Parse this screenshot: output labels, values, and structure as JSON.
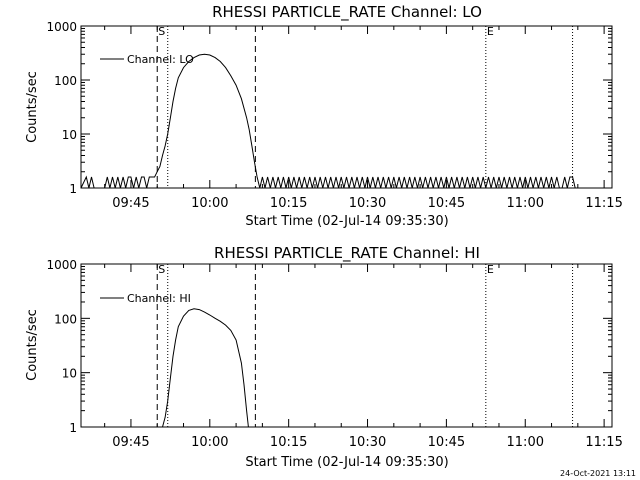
{
  "footer": {
    "stamp": "24-Oct-2021 13:11"
  },
  "chart_data": [
    {
      "type": "line",
      "title": "RHESSI PARTICLE_RATE Channel: LO",
      "xlabel": "Start Time (02-Jul-14 09:35:30)",
      "ylabel": "Counts/sec",
      "yscale": "log",
      "xlim": [
        "09:35:30",
        "11:16:30"
      ],
      "ylim": [
        1,
        1000
      ],
      "grid": false,
      "legend": "top-left",
      "x_ticks": [
        "09:45",
        "10:00",
        "10:15",
        "10:30",
        "10:45",
        "11:00",
        "11:15"
      ],
      "y_ticks": [
        "1",
        "10",
        "100",
        "1000"
      ],
      "markers": [
        {
          "label": "S",
          "time": "09:50:00",
          "style": "dashed"
        },
        {
          "label": "",
          "time": "09:52:00",
          "style": "dotted"
        },
        {
          "label": "",
          "time": "10:08:40",
          "style": "dashed"
        },
        {
          "label": "E",
          "time": "10:52:30",
          "style": "dotted"
        },
        {
          "label": "",
          "time": "11:09:00",
          "style": "dotted"
        }
      ],
      "series": [
        {
          "name": "Channel: LO",
          "points": [
            [
              "09:35:30",
              1
            ],
            [
              "09:36:30",
              1.6
            ],
            [
              "09:37:00",
              1
            ],
            [
              "09:37:30",
              1.6
            ],
            [
              "09:38:00",
              1
            ],
            [
              "09:40:00",
              1
            ],
            [
              "09:40:30",
              1.6
            ],
            [
              "09:41:00",
              1
            ],
            [
              "09:41:30",
              1.6
            ],
            [
              "09:42:00",
              1
            ],
            [
              "09:42:30",
              1.6
            ],
            [
              "09:43:00",
              1
            ],
            [
              "09:43:30",
              1.6
            ],
            [
              "09:44:00",
              1
            ],
            [
              "09:44:30",
              1.6
            ],
            [
              "09:45:00",
              1.6
            ],
            [
              "09:45:30",
              1
            ],
            [
              "09:46:00",
              1.6
            ],
            [
              "09:46:30",
              1
            ],
            [
              "09:47:00",
              1.6
            ],
            [
              "09:47:30",
              1.6
            ],
            [
              "09:48:00",
              1
            ],
            [
              "09:48:30",
              1.6
            ],
            [
              "09:49:00",
              1.6
            ],
            [
              "09:49:30",
              1.6
            ],
            [
              "09:50:00",
              2
            ],
            [
              "09:50:30",
              2.5
            ],
            [
              "09:51:00",
              4
            ],
            [
              "09:51:30",
              6
            ],
            [
              "09:52:00",
              10
            ],
            [
              "09:52:30",
              20
            ],
            [
              "09:53:00",
              40
            ],
            [
              "09:53:30",
              70
            ],
            [
              "09:54:00",
              110
            ],
            [
              "09:55:00",
              170
            ],
            [
              "09:56:00",
              220
            ],
            [
              "09:57:00",
              260
            ],
            [
              "09:58:00",
              290
            ],
            [
              "09:59:00",
              300
            ],
            [
              "10:00:00",
              290
            ],
            [
              "10:01:00",
              260
            ],
            [
              "10:02:00",
              220
            ],
            [
              "10:03:00",
              170
            ],
            [
              "10:04:00",
              120
            ],
            [
              "10:05:00",
              80
            ],
            [
              "10:06:00",
              45
            ],
            [
              "10:07:00",
              20
            ],
            [
              "10:07:30",
              12
            ],
            [
              "10:08:00",
              6
            ],
            [
              "10:08:30",
              3
            ],
            [
              "10:09:00",
              1.6
            ],
            [
              "10:09:30",
              1
            ],
            [
              "10:10:00",
              1.6
            ],
            [
              "10:10:30",
              1
            ],
            [
              "10:11:00",
              1.6
            ],
            [
              "10:11:30",
              1
            ],
            [
              "10:12:00",
              1.6
            ],
            [
              "10:12:30",
              1
            ],
            [
              "10:13:00",
              1.6
            ],
            [
              "10:13:30",
              1
            ],
            [
              "10:14:00",
              1.6
            ],
            [
              "10:14:30",
              1
            ],
            [
              "10:15:00",
              1.6
            ],
            [
              "10:15:30",
              1
            ],
            [
              "10:16:00",
              1.6
            ],
            [
              "10:16:30",
              1
            ],
            [
              "10:17:00",
              1.6
            ],
            [
              "10:17:30",
              1
            ],
            [
              "10:18:00",
              1.6
            ],
            [
              "10:18:30",
              1
            ],
            [
              "10:19:00",
              1.6
            ],
            [
              "10:19:30",
              1
            ],
            [
              "10:20:00",
              1.6
            ],
            [
              "10:20:30",
              1
            ],
            [
              "10:21:00",
              1.6
            ],
            [
              "10:21:30",
              1
            ],
            [
              "10:22:00",
              1.6
            ],
            [
              "10:22:30",
              1
            ],
            [
              "10:23:00",
              1.6
            ],
            [
              "10:23:30",
              1
            ],
            [
              "10:24:00",
              1.6
            ],
            [
              "10:24:30",
              1
            ],
            [
              "10:25:00",
              1.6
            ],
            [
              "10:25:30",
              1
            ],
            [
              "10:26:00",
              1.6
            ],
            [
              "10:26:30",
              1
            ],
            [
              "10:27:00",
              1.6
            ],
            [
              "10:27:30",
              1
            ],
            [
              "10:28:00",
              1.6
            ],
            [
              "10:28:30",
              1
            ],
            [
              "10:29:00",
              1.6
            ],
            [
              "10:29:30",
              1
            ],
            [
              "10:30:00",
              1.6
            ],
            [
              "10:30:30",
              1
            ],
            [
              "10:31:00",
              1.6
            ],
            [
              "10:31:30",
              1
            ],
            [
              "10:32:00",
              1.6
            ],
            [
              "10:32:30",
              1
            ],
            [
              "10:33:00",
              1.6
            ],
            [
              "10:33:30",
              1
            ],
            [
              "10:34:00",
              1.6
            ],
            [
              "10:34:30",
              1
            ],
            [
              "10:35:00",
              1.6
            ],
            [
              "10:35:30",
              1
            ],
            [
              "10:36:00",
              1.6
            ],
            [
              "10:36:30",
              1
            ],
            [
              "10:37:00",
              1.6
            ],
            [
              "10:37:30",
              1
            ],
            [
              "10:38:00",
              1.6
            ],
            [
              "10:38:30",
              1
            ],
            [
              "10:39:00",
              1.6
            ],
            [
              "10:39:30",
              1
            ],
            [
              "10:40:00",
              1.6
            ],
            [
              "10:40:30",
              1
            ],
            [
              "10:41:00",
              1.6
            ],
            [
              "10:41:30",
              1
            ],
            [
              "10:42:00",
              1.6
            ],
            [
              "10:42:30",
              1
            ],
            [
              "10:43:00",
              1.6
            ],
            [
              "10:43:30",
              1
            ],
            [
              "10:44:00",
              1.6
            ],
            [
              "10:44:30",
              1
            ],
            [
              "10:45:00",
              1.6
            ],
            [
              "10:45:30",
              1
            ],
            [
              "10:46:00",
              1.6
            ],
            [
              "10:46:30",
              1
            ],
            [
              "10:47:00",
              1.6
            ],
            [
              "10:47:30",
              1
            ],
            [
              "10:48:00",
              1.6
            ],
            [
              "10:48:30",
              1
            ],
            [
              "10:49:00",
              1.6
            ],
            [
              "10:49:30",
              1
            ],
            [
              "10:50:00",
              1.6
            ],
            [
              "10:50:30",
              1
            ],
            [
              "10:51:00",
              1.6
            ],
            [
              "10:51:30",
              1
            ],
            [
              "10:52:00",
              1.6
            ],
            [
              "10:52:30",
              1
            ],
            [
              "10:53:00",
              1.6
            ],
            [
              "10:53:30",
              1
            ],
            [
              "10:54:00",
              1.6
            ],
            [
              "10:54:30",
              1
            ],
            [
              "10:55:00",
              1.6
            ],
            [
              "10:55:30",
              1
            ],
            [
              "10:56:00",
              1.6
            ],
            [
              "10:56:30",
              1
            ],
            [
              "10:57:00",
              1.6
            ],
            [
              "10:57:30",
              1
            ],
            [
              "10:58:00",
              1.6
            ],
            [
              "10:58:30",
              1
            ],
            [
              "10:59:00",
              1.6
            ],
            [
              "10:59:30",
              1
            ],
            [
              "11:00:00",
              1.6
            ],
            [
              "11:00:30",
              1
            ],
            [
              "11:01:00",
              1.6
            ],
            [
              "11:01:30",
              1
            ],
            [
              "11:02:00",
              1.6
            ],
            [
              "11:02:30",
              1
            ],
            [
              "11:03:00",
              1.6
            ],
            [
              "11:03:30",
              1
            ],
            [
              "11:04:00",
              1.6
            ],
            [
              "11:04:30",
              1
            ],
            [
              "11:05:00",
              1.6
            ],
            [
              "11:05:30",
              1
            ],
            [
              "11:06:00",
              1.6
            ],
            [
              "11:06:30",
              1
            ],
            [
              "11:07:00",
              1
            ],
            [
              "11:07:30",
              1.6
            ],
            [
              "11:08:00",
              1
            ],
            [
              "11:08:30",
              1.6
            ],
            [
              "11:09:00",
              1.6
            ],
            [
              "11:09:30",
              1
            ]
          ]
        }
      ]
    },
    {
      "type": "line",
      "title": "RHESSI PARTICLE_RATE Channel: HI",
      "xlabel": "Start Time (02-Jul-14 09:35:30)",
      "ylabel": "Counts/sec",
      "yscale": "log",
      "xlim": [
        "09:35:30",
        "11:16:30"
      ],
      "ylim": [
        1,
        1000
      ],
      "grid": false,
      "legend": "top-left",
      "x_ticks": [
        "09:45",
        "10:00",
        "10:15",
        "10:30",
        "10:45",
        "11:00",
        "11:15"
      ],
      "y_ticks": [
        "1",
        "10",
        "100",
        "1000"
      ],
      "markers": [
        {
          "label": "S",
          "time": "09:50:00",
          "style": "dashed"
        },
        {
          "label": "",
          "time": "09:52:00",
          "style": "dotted"
        },
        {
          "label": "",
          "time": "10:08:40",
          "style": "dashed"
        },
        {
          "label": "E",
          "time": "10:52:30",
          "style": "dotted"
        },
        {
          "label": "",
          "time": "11:09:00",
          "style": "dotted"
        }
      ],
      "series": [
        {
          "name": "Channel: HI",
          "points": [
            [
              "09:51:00",
              1
            ],
            [
              "09:51:30",
              1.5
            ],
            [
              "09:52:00",
              3
            ],
            [
              "09:52:30",
              8
            ],
            [
              "09:53:00",
              20
            ],
            [
              "09:53:30",
              40
            ],
            [
              "09:54:00",
              70
            ],
            [
              "09:55:00",
              110
            ],
            [
              "09:56:00",
              140
            ],
            [
              "09:57:00",
              150
            ],
            [
              "09:58:00",
              145
            ],
            [
              "09:59:00",
              130
            ],
            [
              "10:00:00",
              115
            ],
            [
              "10:01:00",
              100
            ],
            [
              "10:02:00",
              88
            ],
            [
              "10:03:00",
              75
            ],
            [
              "10:04:00",
              60
            ],
            [
              "10:05:00",
              40
            ],
            [
              "10:06:00",
              15
            ],
            [
              "10:06:30",
              6
            ],
            [
              "10:07:00",
              2
            ],
            [
              "10:07:20",
              1
            ]
          ]
        }
      ]
    }
  ]
}
